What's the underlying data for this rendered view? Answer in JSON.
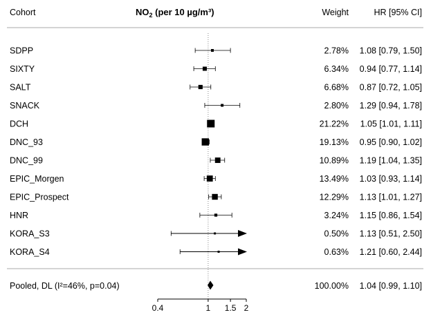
{
  "chart_data": {
    "type": "forest",
    "title": "NO",
    "title_sub": "2",
    "title_rest": " (per 10 µg/m³)",
    "columns": {
      "cohort": "Cohort",
      "weight": "Weight",
      "hr": "HR [95% CI]"
    },
    "x_scale": "log",
    "xlim": [
      0.4,
      2
    ],
    "ticks": [
      "0.4",
      "1",
      "1.5",
      "2"
    ],
    "reference_line": 1,
    "rows": [
      {
        "cohort": "SDPP",
        "hr": 1.08,
        "lower": 0.79,
        "upper": 1.5,
        "weight_pct": 2.78,
        "weight": "2.78%",
        "ci_text": "1.08 [0.79, 1.50]",
        "arrow": false
      },
      {
        "cohort": "SIXTY",
        "hr": 0.94,
        "lower": 0.77,
        "upper": 1.14,
        "weight_pct": 6.34,
        "weight": "6.34%",
        "ci_text": "0.94 [0.77, 1.14]",
        "arrow": false
      },
      {
        "cohort": "SALT",
        "hr": 0.87,
        "lower": 0.72,
        "upper": 1.05,
        "weight_pct": 6.68,
        "weight": "6.68%",
        "ci_text": "0.87 [0.72, 1.05]",
        "arrow": false
      },
      {
        "cohort": "SNACK",
        "hr": 1.29,
        "lower": 0.94,
        "upper": 1.78,
        "weight_pct": 2.8,
        "weight": "2.80%",
        "ci_text": "1.29 [0.94, 1.78]",
        "arrow": false
      },
      {
        "cohort": "DCH",
        "hr": 1.05,
        "lower": 1.01,
        "upper": 1.11,
        "weight_pct": 21.22,
        "weight": "21.22%",
        "ci_text": "1.05 [1.01, 1.11]",
        "arrow": false
      },
      {
        "cohort": "DNC_93",
        "hr": 0.95,
        "lower": 0.9,
        "upper": 1.02,
        "weight_pct": 19.13,
        "weight": "19.13%",
        "ci_text": "0.95 [0.90, 1.02]",
        "arrow": false
      },
      {
        "cohort": "DNC_99",
        "hr": 1.19,
        "lower": 1.04,
        "upper": 1.35,
        "weight_pct": 10.89,
        "weight": "10.89%",
        "ci_text": "1.19 [1.04, 1.35]",
        "arrow": false
      },
      {
        "cohort": "EPIC_Morgen",
        "hr": 1.03,
        "lower": 0.93,
        "upper": 1.14,
        "weight_pct": 13.49,
        "weight": "13.49%",
        "ci_text": "1.03 [0.93, 1.14]",
        "arrow": false
      },
      {
        "cohort": "EPIC_Prospect",
        "hr": 1.13,
        "lower": 1.01,
        "upper": 1.27,
        "weight_pct": 12.29,
        "weight": "12.29%",
        "ci_text": "1.13 [1.01, 1.27]",
        "arrow": false
      },
      {
        "cohort": "HNR",
        "hr": 1.15,
        "lower": 0.86,
        "upper": 1.54,
        "weight_pct": 3.24,
        "weight": "3.24%",
        "ci_text": "1.15 [0.86, 1.54]",
        "arrow": false
      },
      {
        "cohort": "KORA_S3",
        "hr": 1.13,
        "lower": 0.51,
        "upper": 2.5,
        "weight_pct": 0.5,
        "weight": "0.50%",
        "ci_text": "1.13 [0.51, 2.50]",
        "arrow": true
      },
      {
        "cohort": "KORA_S4",
        "hr": 1.21,
        "lower": 0.6,
        "upper": 2.44,
        "weight_pct": 0.63,
        "weight": "0.63%",
        "ci_text": "1.21 [0.60, 2.44]",
        "arrow": true
      }
    ],
    "pooled": {
      "label": "Pooled, DL (I²=46%, p=0.04)",
      "hr": 1.04,
      "lower": 0.99,
      "upper": 1.1,
      "weight": "100.00%",
      "ci_text": "1.04 [0.99, 1.10]"
    },
    "colors": {
      "marker": "#000000",
      "reference": "#888888",
      "separator": "#aaaaaa"
    }
  }
}
